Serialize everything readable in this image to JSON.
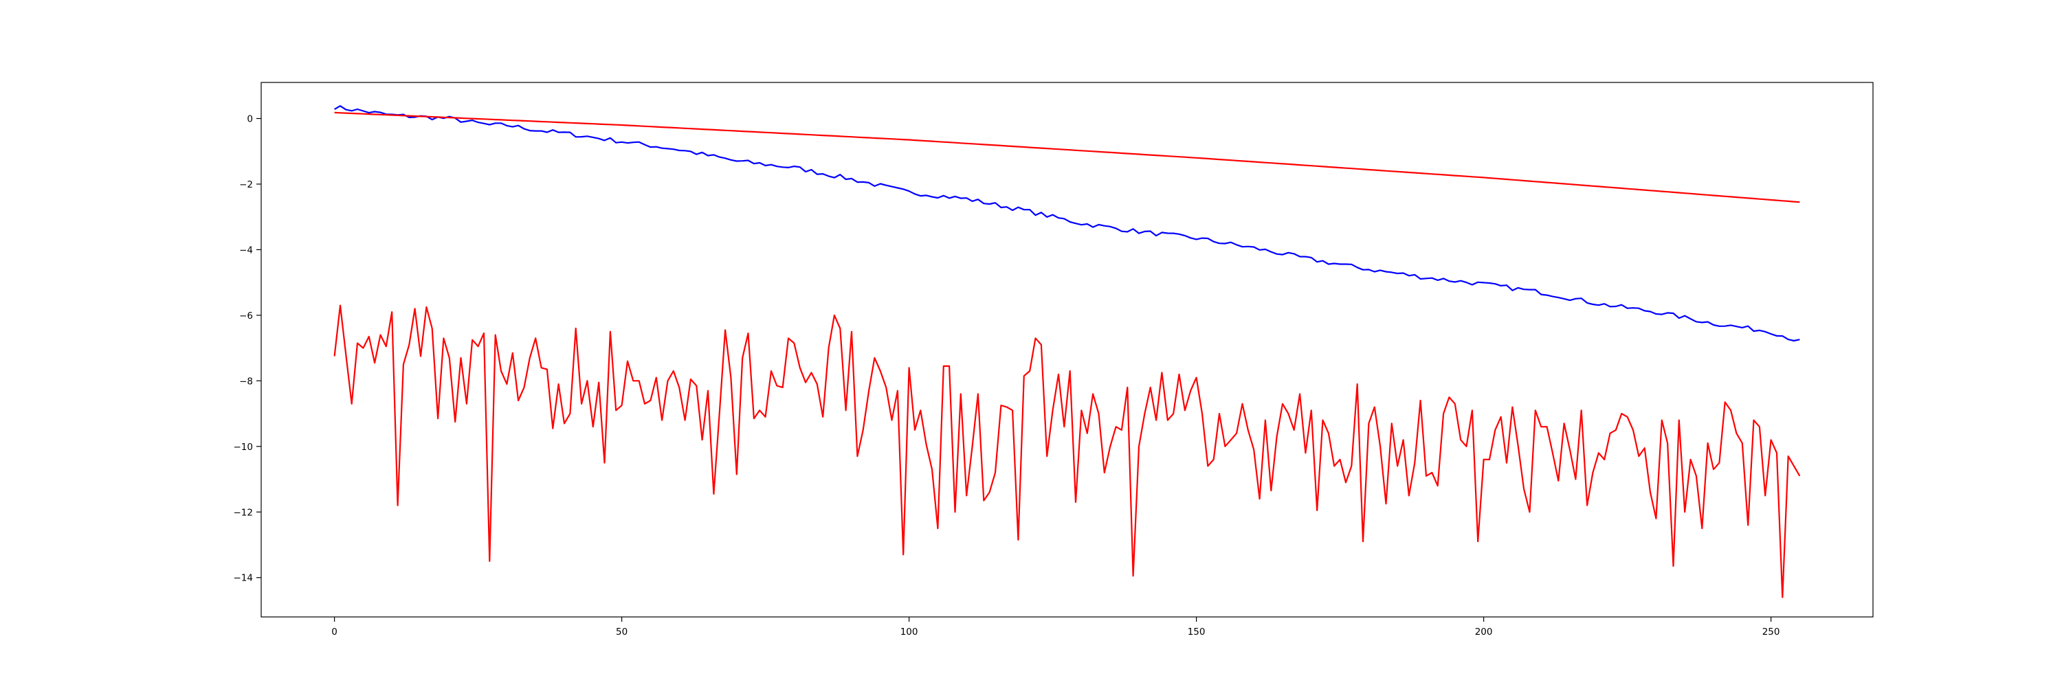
{
  "chart_data": {
    "type": "line",
    "title": "",
    "xlabel": "",
    "ylabel": "",
    "xlim": [
      -12.75,
      267.75
    ],
    "ylim": [
      -15.2,
      1.1
    ],
    "xticks": [
      0,
      50,
      100,
      150,
      200,
      250
    ],
    "yticks": [
      0,
      -2,
      -4,
      -6,
      -8,
      -10,
      -12,
      -14
    ],
    "xtick_labels": [
      "0",
      "50",
      "100",
      "150",
      "200",
      "250"
    ],
    "ytick_labels": [
      "0",
      "−2",
      "−4",
      "−6",
      "−8",
      "−10",
      "−12",
      "−14"
    ],
    "grid": false,
    "legend": "none",
    "x_range": [
      0,
      255
    ],
    "series": [
      {
        "color": "#0000ff",
        "style": "jagged decline",
        "anchors": [
          [
            0,
            0.35
          ],
          [
            10,
            0.1
          ],
          [
            20,
            0.0
          ],
          [
            27,
            -0.2
          ],
          [
            30,
            -0.2
          ],
          [
            35,
            -0.35
          ],
          [
            40,
            -0.45
          ],
          [
            50,
            -0.7
          ],
          [
            60,
            -0.95
          ],
          [
            70,
            -1.3
          ],
          [
            80,
            -1.5
          ],
          [
            90,
            -1.85
          ],
          [
            100,
            -2.25
          ],
          [
            110,
            -2.45
          ],
          [
            120,
            -2.8
          ],
          [
            130,
            -3.2
          ],
          [
            140,
            -3.45
          ],
          [
            150,
            -3.65
          ],
          [
            160,
            -3.95
          ],
          [
            170,
            -4.3
          ],
          [
            180,
            -4.6
          ],
          [
            190,
            -4.85
          ],
          [
            200,
            -5.05
          ],
          [
            210,
            -5.3
          ],
          [
            220,
            -5.65
          ],
          [
            230,
            -5.9
          ],
          [
            240,
            -6.25
          ],
          [
            250,
            -6.5
          ],
          [
            255,
            -6.8
          ]
        ],
        "jitter": 0.07
      },
      {
        "color": "#ff0000",
        "style": "smooth",
        "anchors": [
          [
            0,
            0.18
          ],
          [
            50,
            -0.2
          ],
          [
            100,
            -0.65
          ],
          [
            150,
            -1.2
          ],
          [
            200,
            -1.8
          ],
          [
            255,
            -2.55
          ]
        ]
      },
      {
        "color": "#ff0000",
        "style": "noisy",
        "y": [
          -7.25,
          -5.7,
          -7.2,
          -8.7,
          -6.85,
          -7.0,
          -6.65,
          -7.45,
          -6.6,
          -6.95,
          -5.9,
          -11.8,
          -7.5,
          -6.9,
          -5.8,
          -7.25,
          -5.75,
          -6.4,
          -9.15,
          -6.7,
          -7.3,
          -9.25,
          -7.3,
          -8.7,
          -6.75,
          -6.95,
          -6.55,
          -13.5,
          -6.6,
          -7.7,
          -8.1,
          -7.15,
          -8.6,
          -8.2,
          -7.3,
          -6.7,
          -7.6,
          -7.65,
          -9.45,
          -8.1,
          -9.3,
          -9.0,
          -6.4,
          -8.7,
          -8.0,
          -9.4,
          -8.05,
          -10.5,
          -6.5,
          -8.9,
          -8.75,
          -7.4,
          -8.0,
          -8.0,
          -8.7,
          -8.6,
          -7.9,
          -9.2,
          -8.0,
          -7.7,
          -8.2,
          -9.2,
          -7.95,
          -8.15,
          -9.8,
          -8.3,
          -11.45,
          -9.0,
          -6.45,
          -7.9,
          -10.85,
          -7.3,
          -6.55,
          -9.15,
          -8.9,
          -9.1,
          -7.7,
          -8.15,
          -8.2,
          -6.7,
          -6.85,
          -7.6,
          -8.05,
          -7.75,
          -8.1,
          -9.1,
          -7.0,
          -6.0,
          -6.4,
          -8.9,
          -6.5,
          -10.3,
          -9.5,
          -8.3,
          -7.3,
          -7.7,
          -8.2,
          -9.2,
          -8.3,
          -13.3,
          -7.6,
          -9.5,
          -8.9,
          -9.95,
          -10.7,
          -12.5,
          -7.55,
          -7.55,
          -12.0,
          -8.4,
          -11.5,
          -10.0,
          -8.4,
          -11.65,
          -11.4,
          -10.8,
          -8.75,
          -8.8,
          -8.9,
          -12.85,
          -7.85,
          -7.7,
          -6.7,
          -6.9,
          -10.3,
          -8.9,
          -7.8,
          -9.4,
          -7.7,
          -11.7,
          -8.9,
          -9.6,
          -8.4,
          -9.0,
          -10.8,
          -10.0,
          -9.4,
          -9.5,
          -8.2,
          -13.95,
          -10.0,
          -9.0,
          -8.2,
          -9.2,
          -7.75,
          -9.2,
          -9.0,
          -7.8,
          -8.9,
          -8.3,
          -7.9,
          -9.0,
          -10.6,
          -10.4,
          -9.0,
          -10.0,
          -9.8,
          -9.6,
          -8.7,
          -9.5,
          -10.1,
          -11.6,
          -9.2,
          -11.35,
          -9.7,
          -8.7,
          -9.0,
          -9.5,
          -8.4,
          -10.2,
          -8.9,
          -11.95,
          -9.2,
          -9.6,
          -10.6,
          -10.4,
          -11.1,
          -10.6,
          -8.1,
          -12.9,
          -9.3,
          -8.8,
          -10.0,
          -11.75,
          -9.3,
          -10.6,
          -9.8,
          -11.5,
          -10.5,
          -8.6,
          -10.9,
          -10.8,
          -11.2,
          -9.0,
          -8.5,
          -8.7,
          -9.8,
          -10.0,
          -8.9,
          -12.9,
          -10.4,
          -10.4,
          -9.5,
          -9.1,
          -10.5,
          -8.8,
          -10.0,
          -11.3,
          -12.0,
          -8.9,
          -9.4,
          -9.4,
          -10.2,
          -11.05,
          -9.3,
          -10.1,
          -11.0,
          -8.9,
          -11.8,
          -10.8,
          -10.2,
          -10.4,
          -9.6,
          -9.5,
          -9.0,
          -9.1,
          -9.5,
          -10.3,
          -10.05,
          -11.4,
          -12.2,
          -9.2,
          -9.9,
          -13.65,
          -9.2,
          -12.0,
          -10.4,
          -10.9,
          -12.5,
          -9.9,
          -10.7,
          -10.5,
          -8.65,
          -8.9,
          -9.6,
          -9.9,
          -12.4,
          -9.2,
          -9.4,
          -11.5,
          -9.8,
          -10.2,
          -14.6,
          -10.3,
          -10.6,
          -10.9
        ]
      }
    ]
  }
}
